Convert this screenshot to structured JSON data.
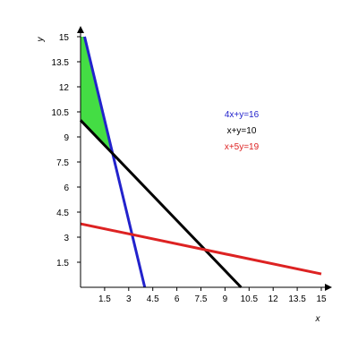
{
  "chart_data": {
    "type": "line",
    "title": "",
    "xlabel": "x",
    "ylabel": "y",
    "xlim": [
      0,
      15
    ],
    "ylim": [
      0,
      15
    ],
    "x_ticks": [
      "1.5",
      "3",
      "4.5",
      "6",
      "7.5",
      "9",
      "10.5",
      "12",
      "13.5",
      "15"
    ],
    "y_ticks": [
      "1.5",
      "3",
      "4.5",
      "6",
      "7.5",
      "9",
      "10.5",
      "12",
      "13.5",
      "15"
    ],
    "x_tick_values": [
      1.5,
      3,
      4.5,
      6,
      7.5,
      9,
      10.5,
      12,
      13.5,
      15
    ],
    "y_tick_values": [
      1.5,
      3,
      4.5,
      6,
      7.5,
      9,
      10.5,
      12,
      13.5,
      15
    ],
    "grid": false,
    "legend_position": "right",
    "series": [
      {
        "name": "4x+y=16",
        "color": "#2222cc",
        "points": [
          [
            0.25,
            15
          ],
          [
            4,
            0
          ]
        ]
      },
      {
        "name": "x+y=10",
        "color": "#000000",
        "points": [
          [
            0,
            10
          ],
          [
            10,
            0
          ]
        ]
      },
      {
        "name": "x+5y=19",
        "color": "#dd2222",
        "points": [
          [
            0,
            3.8
          ],
          [
            15,
            0.8
          ]
        ]
      }
    ],
    "shaded_region": {
      "color": "#44dd44",
      "vertices": [
        [
          0,
          10
        ],
        [
          0,
          15
        ],
        [
          0.25,
          15
        ],
        [
          2,
          8
        ]
      ]
    }
  }
}
